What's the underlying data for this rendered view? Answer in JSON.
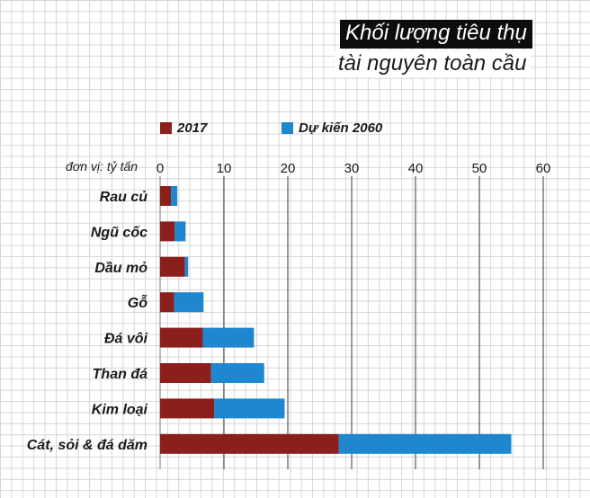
{
  "title_line1": "Khối lượng tiêu thụ",
  "title_line2": "tài nguyên toàn cầu",
  "unit_label": "đơn vị: tỷ tấn",
  "colors": {
    "series_2017": "#8b1f1c",
    "series_2060": "#1f86d0"
  },
  "chart_data": {
    "type": "bar",
    "orientation": "horizontal",
    "stacked": true,
    "title": "Khối lượng tiêu thụ tài nguyên toàn cầu",
    "xlabel": "đơn vị: tỷ tấn",
    "ylabel": "",
    "xlim": [
      0,
      60
    ],
    "ticks": [
      0,
      10,
      20,
      30,
      40,
      50,
      60
    ],
    "grid": true,
    "legend_position": "top",
    "categories": [
      "Rau củ",
      "Ngũ cốc",
      "Dầu mỏ",
      "Gỗ",
      "Đá vôi",
      "Than đá",
      "Kim loại",
      "Cát, sỏi & đá dăm"
    ],
    "series": [
      {
        "name": "2017",
        "values": [
          1.7,
          2.3,
          3.9,
          2.2,
          6.7,
          8.0,
          8.5,
          28.0
        ]
      },
      {
        "name": "Dự kiến 2060",
        "values": [
          1.0,
          1.7,
          0.5,
          4.6,
          8.0,
          8.3,
          11.0,
          27.0
        ]
      }
    ]
  }
}
